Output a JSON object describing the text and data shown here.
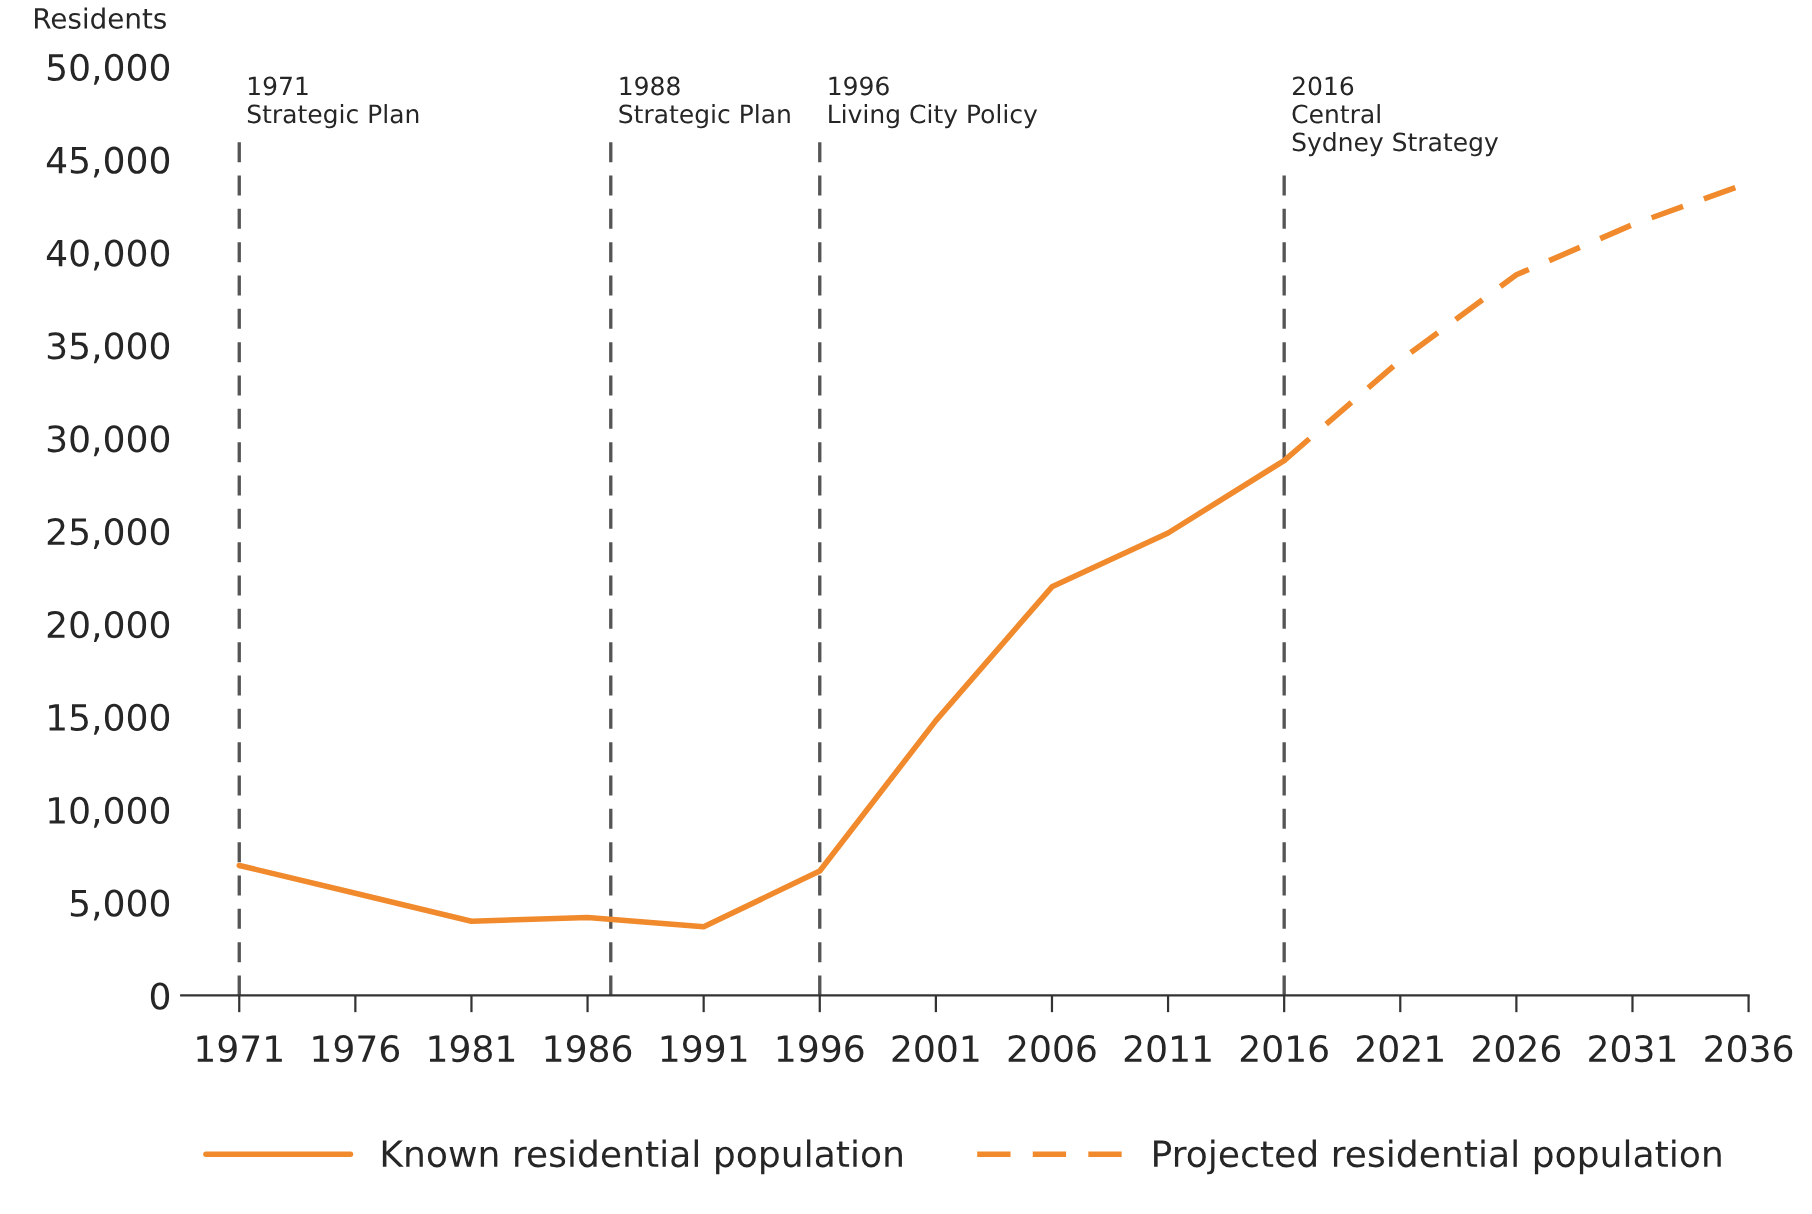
{
  "chart_data": {
    "type": "line",
    "ylabel": "Residents",
    "series": [
      {
        "name": "Known residential population",
        "color": "#f08a2c",
        "line_style": "solid",
        "x": [
          1971,
          1976,
          1981,
          1986,
          1991,
          1996,
          2001,
          2006,
          2011,
          2016
        ],
        "values": [
          7000,
          5500,
          4000,
          4200,
          3700,
          6700,
          14800,
          22000,
          24900,
          28800
        ]
      },
      {
        "name": "Projected residential population",
        "color": "#f08a2c",
        "line_style": "dashed",
        "x": [
          2016,
          2021,
          2026,
          2031,
          2036
        ],
        "values": [
          28800,
          34200,
          38800,
          41500,
          43750
        ]
      }
    ],
    "xlim": [
      1968.5,
      2036
    ],
    "xticks": [
      1971,
      1976,
      1981,
      1986,
      1991,
      1996,
      2001,
      2006,
      2011,
      2016,
      2021,
      2026,
      2031,
      2036
    ],
    "ylim": [
      0,
      50000
    ],
    "yticks": [
      {
        "value": 0,
        "label": "0"
      },
      {
        "value": 5000,
        "label": "5,000"
      },
      {
        "value": 10000,
        "label": "10,000"
      },
      {
        "value": 15000,
        "label": "15,000"
      },
      {
        "value": 20000,
        "label": "20,000"
      },
      {
        "value": 25000,
        "label": "25,000"
      },
      {
        "value": 30000,
        "label": "30,000"
      },
      {
        "value": 35000,
        "label": "35,000"
      },
      {
        "value": 40000,
        "label": "40,000"
      },
      {
        "value": 45000,
        "label": "45,000"
      },
      {
        "value": 50000,
        "label": "50,000"
      }
    ],
    "ref_lines": [
      {
        "axis": "x",
        "value": 1971,
        "label": "1971\nStrategic Plan",
        "color": "#555555",
        "line_style": "dashed"
      },
      {
        "axis": "x",
        "value": 1987,
        "label": "1988\nStrategic Plan",
        "color": "#555555",
        "line_style": "dashed"
      },
      {
        "axis": "x",
        "value": 1996,
        "label": "1996\nLiving City Policy",
        "color": "#555555",
        "line_style": "dashed"
      },
      {
        "axis": "x",
        "value": 2016,
        "label": "2016\nCentral\nSydney Strategy",
        "color": "#555555",
        "line_style": "dashed"
      }
    ],
    "grid": false,
    "legend": "bottom",
    "marker": "none"
  }
}
